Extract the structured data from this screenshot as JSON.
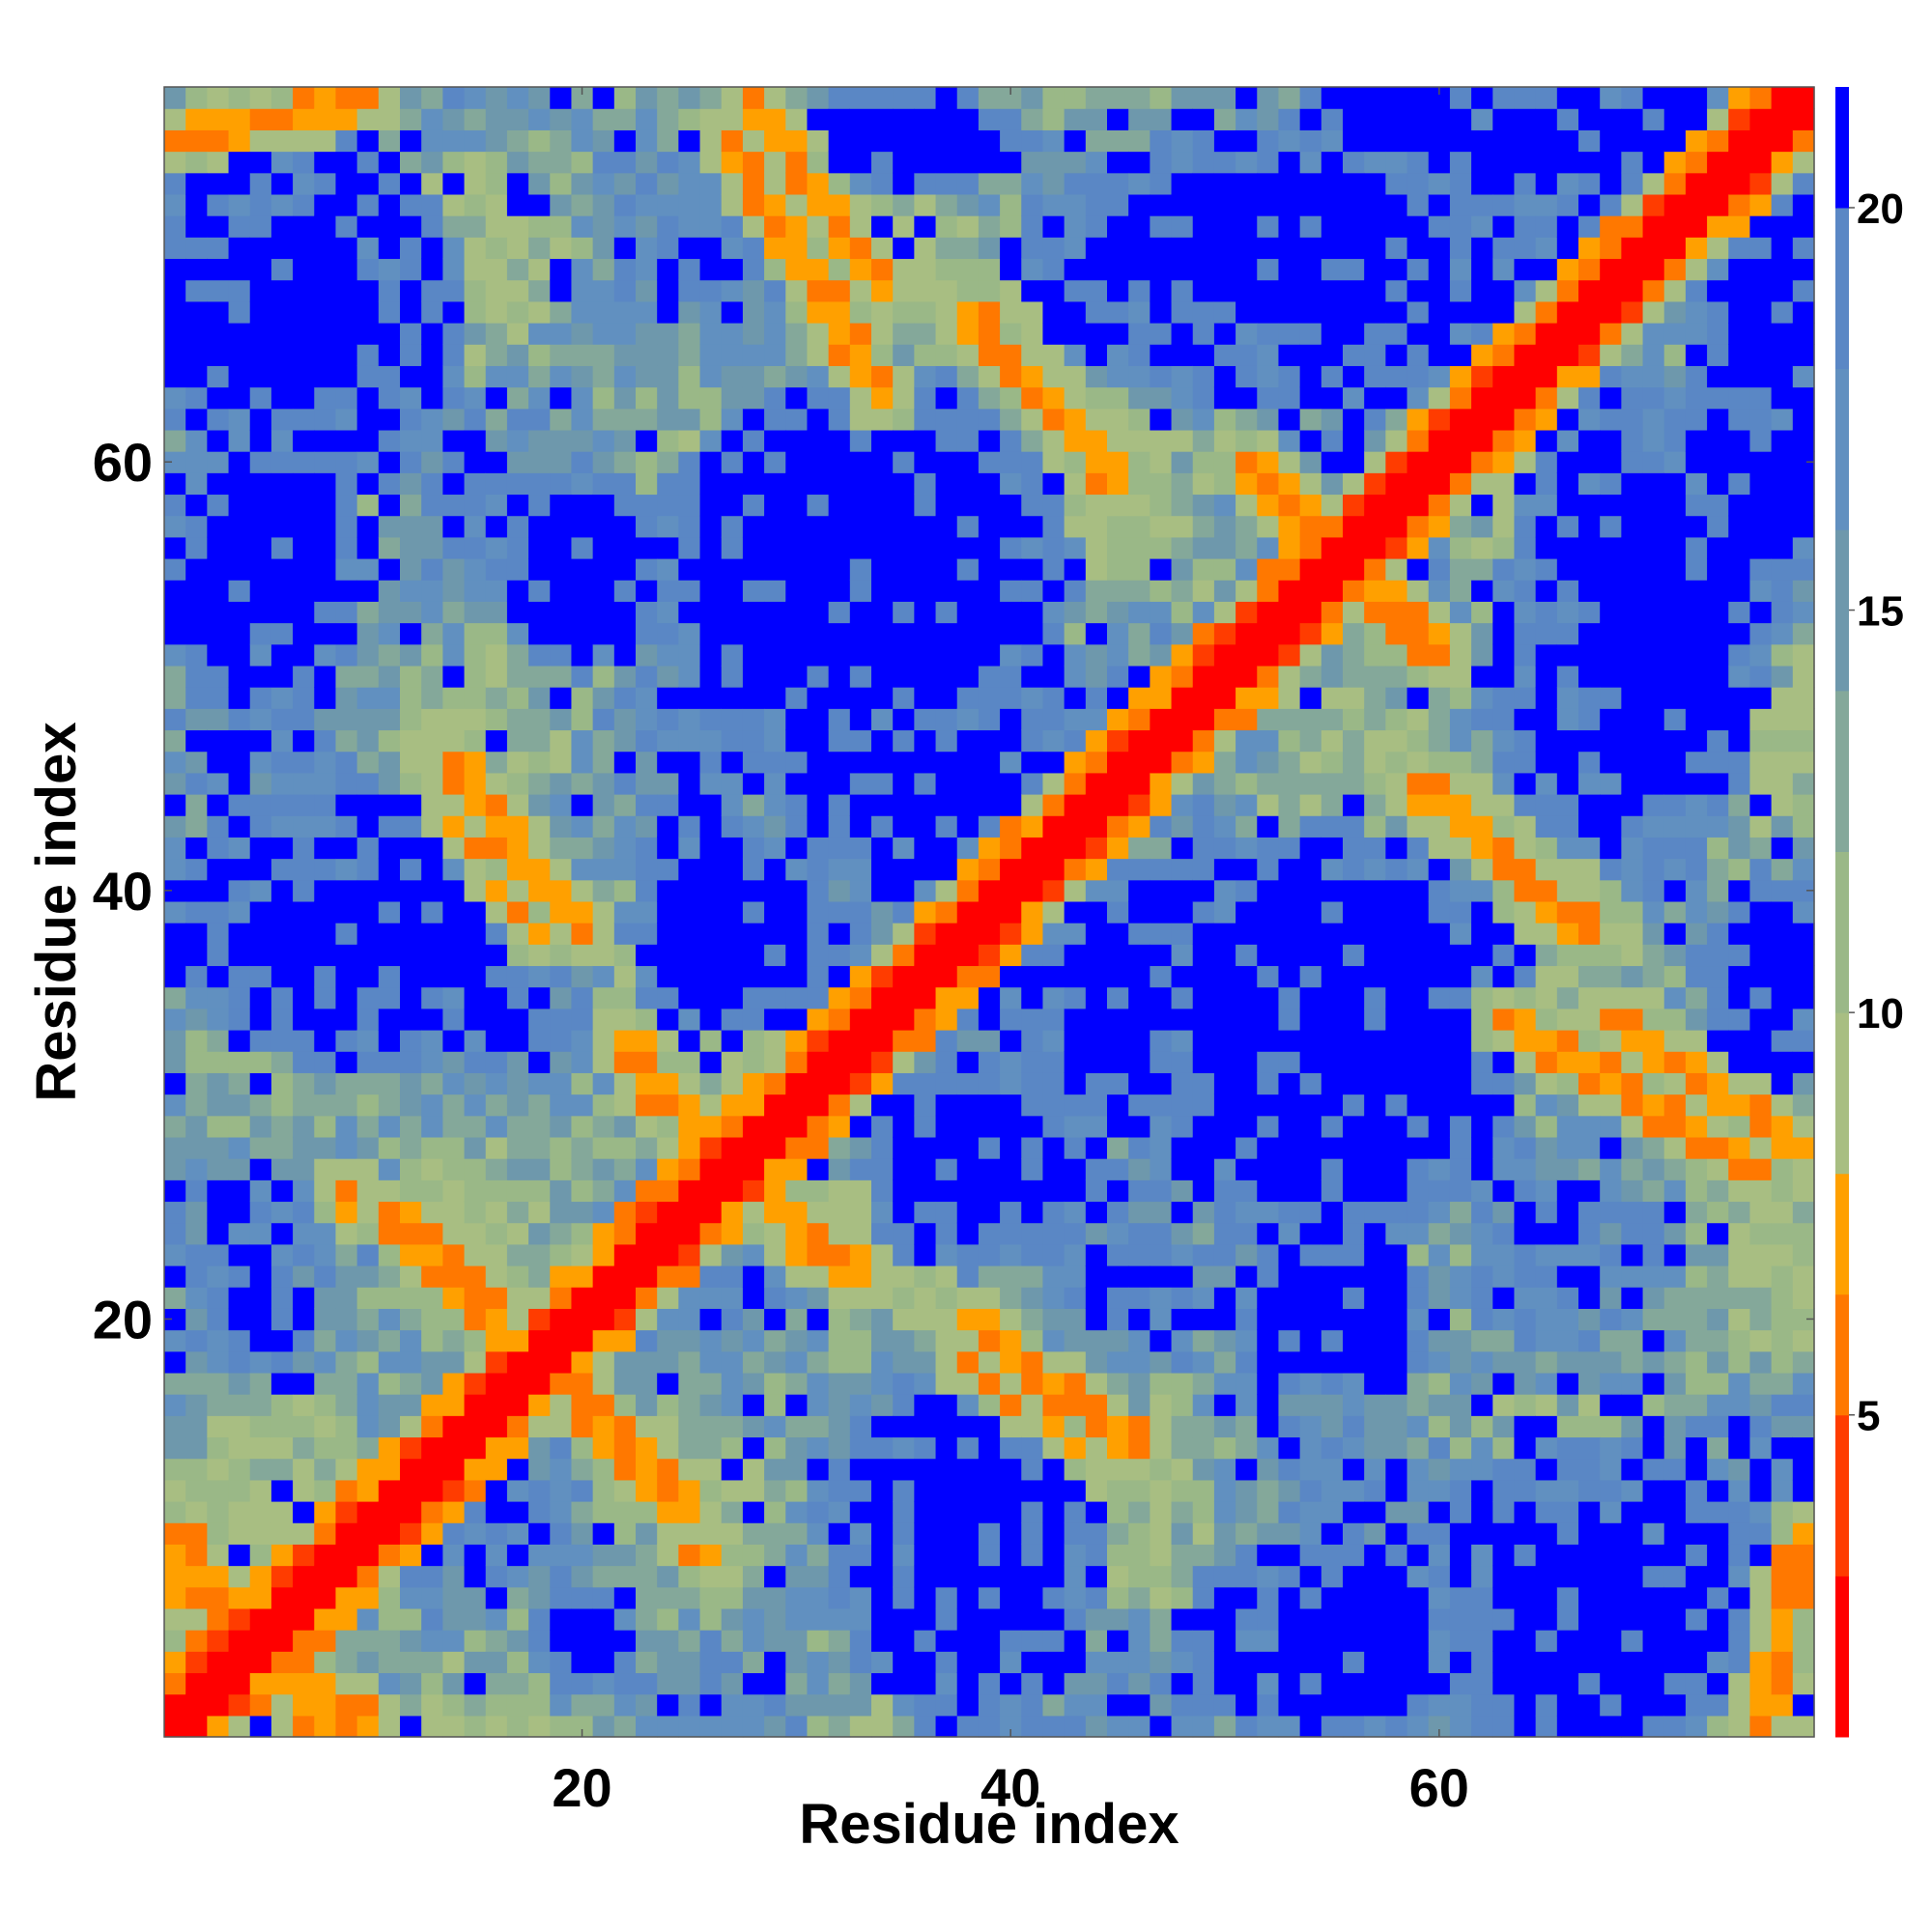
{
  "chart_data": {
    "type": "heatmap",
    "title": "",
    "xlabel": "Residue index",
    "ylabel": "Residue index",
    "n_residues": 77,
    "x_range": [
      1,
      77
    ],
    "y_range": [
      1,
      77
    ],
    "x_ticks": [
      20,
      40,
      60
    ],
    "y_ticks": [
      20,
      40,
      60
    ],
    "colorbar": {
      "ticks": [
        5,
        10,
        15,
        20
      ],
      "range": [
        1,
        21.5
      ],
      "colors": [
        {
          "max": 3,
          "color": "#ff0000"
        },
        {
          "max": 5,
          "color": "#ff3c00"
        },
        {
          "max": 6.5,
          "color": "#ff7800"
        },
        {
          "max": 8,
          "color": "#ffa000"
        },
        {
          "max": 10,
          "color": "#a8be82"
        },
        {
          "max": 12,
          "color": "#9ab887"
        },
        {
          "max": 14,
          "color": "#84a89a"
        },
        {
          "max": 16,
          "color": "#6e98ac"
        },
        {
          "max": 18,
          "color": "#6190c0"
        },
        {
          "max": 20,
          "color": "#5a87c5"
        },
        {
          "max": 21.5,
          "color": "#0000ff"
        }
      ]
    },
    "structure": {
      "diagonal_value": 2,
      "contact_bands": [
        {
          "x1": 1,
          "y1": 8,
          "x2": 10,
          "y2": 1,
          "value": 6.5
        },
        {
          "x1": 11,
          "y1": 25,
          "x2": 22,
          "y2": 14,
          "value": 6.5
        },
        {
          "x1": 14,
          "y1": 46,
          "x2": 20,
          "y2": 38,
          "value": 6.5
        },
        {
          "x1": 28,
          "y1": 77,
          "x2": 34,
          "y2": 68,
          "value": 6.5
        },
        {
          "x1": 38,
          "y1": 67,
          "x2": 45,
          "y2": 59,
          "value": 6.5
        },
        {
          "x1": 51,
          "y1": 60,
          "x2": 60,
          "y2": 51,
          "value": 6.5
        },
        {
          "x1": 60,
          "y1": 45,
          "x2": 68,
          "y2": 38,
          "value": 6.5
        },
        {
          "x1": 63,
          "y1": 34,
          "x2": 75,
          "y2": 27,
          "value": 6.5
        },
        {
          "x1": 23,
          "y1": 31,
          "x2": 33,
          "y2": 22,
          "value": 6.5
        },
        {
          "x1": 38,
          "y1": 18,
          "x2": 46,
          "y2": 13,
          "value": 6.5
        },
        {
          "x1": 22,
          "y1": 14,
          "x2": 26,
          "y2": 9,
          "value": 6.5
        },
        {
          "x1": 75,
          "y1": 1,
          "x2": 77,
          "y2": 10,
          "value": 6.5
        }
      ],
      "far_regions": [
        {
          "x": 5,
          "y": 67,
          "rx": 6,
          "ry": 5
        },
        {
          "x": 5,
          "y": 56,
          "rx": 4,
          "ry": 4
        },
        {
          "x": 10,
          "y": 38,
          "rx": 6,
          "ry": 3
        },
        {
          "x": 27,
          "y": 38,
          "rx": 4,
          "ry": 4
        },
        {
          "x": 33,
          "y": 55,
          "rx": 8,
          "ry": 7
        },
        {
          "x": 35,
          "y": 75,
          "rx": 5,
          "ry": 2
        },
        {
          "x": 52,
          "y": 70,
          "rx": 8,
          "ry": 4
        },
        {
          "x": 52,
          "y": 35,
          "rx": 10,
          "ry": 6
        },
        {
          "x": 39,
          "y": 26,
          "rx": 4,
          "ry": 3
        },
        {
          "x": 38,
          "y": 9,
          "rx": 5,
          "ry": 7
        },
        {
          "x": 55,
          "y": 5,
          "rx": 6,
          "ry": 4
        },
        {
          "x": 67,
          "y": 7,
          "rx": 7,
          "ry": 6
        },
        {
          "x": 69,
          "y": 52,
          "rx": 5,
          "ry": 10
        },
        {
          "x": 67,
          "y": 75,
          "rx": 5,
          "ry": 2
        },
        {
          "x": 75,
          "y": 65,
          "rx": 3,
          "ry": 10
        },
        {
          "x": 55,
          "y": 20,
          "rx": 4,
          "ry": 3
        },
        {
          "x": 5,
          "y": 20,
          "rx": 2,
          "ry": 2
        }
      ]
    }
  }
}
